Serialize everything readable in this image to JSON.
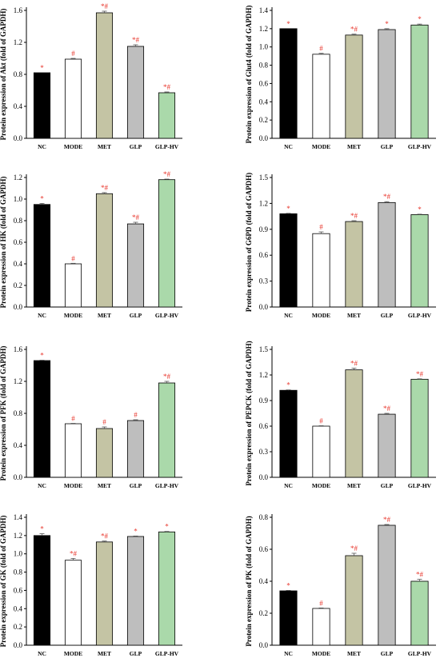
{
  "chart_data": [
    {
      "type": "bar",
      "ylabel": "Protein expression of Akt (fold of GAPDH)",
      "categories": [
        "NC",
        "MODE",
        "MET",
        "GLP",
        "GLP-HV"
      ],
      "values": [
        0.82,
        0.99,
        1.57,
        1.15,
        0.57
      ],
      "errors": [
        0.0,
        0.01,
        0.02,
        0.02,
        0.01
      ],
      "annotations": [
        "*",
        "#",
        "*#",
        "*#",
        "*#"
      ],
      "ylim": [
        0,
        1.6
      ],
      "yticks": [
        "0.0",
        "0.4",
        "0.8",
        "1.2",
        "1.6"
      ]
    },
    {
      "type": "bar",
      "ylabel": "Protein expression of Glut4 (fold of GAPDH)",
      "categories": [
        "NC",
        "MODE",
        "MET",
        "GLP",
        "GLP-HV"
      ],
      "values": [
        1.2,
        0.92,
        1.13,
        1.19,
        1.24
      ],
      "errors": [
        0.0,
        0.01,
        0.01,
        0.01,
        0.01
      ],
      "annotations": [
        "*",
        "#",
        "*#",
        "*",
        "*"
      ],
      "ylim": [
        0,
        1.4
      ],
      "yticks": [
        "0.0",
        "0.2",
        "0.4",
        "0.6",
        "0.8",
        "1.0",
        "1.2",
        "1.4"
      ]
    },
    {
      "type": "bar",
      "ylabel": "Protein expression of HK (fold of GAPDH)",
      "categories": [
        "NC",
        "MODE",
        "MET",
        "GLP",
        "GLP-HV"
      ],
      "values": [
        0.95,
        0.4,
        1.05,
        0.77,
        1.18
      ],
      "errors": [
        0.01,
        0.005,
        0.01,
        0.015,
        0.005
      ],
      "annotations": [
        "*",
        "#",
        "*#",
        "*#",
        "*#"
      ],
      "ylim": [
        0,
        1.2
      ],
      "yticks": [
        "0.0",
        "0.2",
        "0.4",
        "0.6",
        "0.8",
        "1.0",
        "1.2"
      ]
    },
    {
      "type": "bar",
      "ylabel": "Protein expression of G6PD (fold of GAPDH)",
      "categories": [
        "NC",
        "MODE",
        "MET",
        "GLP",
        "GLP-HV"
      ],
      "values": [
        1.08,
        0.85,
        0.99,
        1.21,
        1.07
      ],
      "errors": [
        0.005,
        0.02,
        0.01,
        0.01,
        0.005
      ],
      "annotations": [
        "*",
        "#",
        "*#",
        "*#",
        "*"
      ],
      "ylim": [
        0,
        1.5
      ],
      "yticks": [
        "0.0",
        "0.3",
        "0.6",
        "0.9",
        "1.2",
        "1.5"
      ]
    },
    {
      "type": "bar",
      "ylabel": "Protein expression of PFK (fold of GAPDH)",
      "categories": [
        "NC",
        "MODE",
        "MET",
        "GLP",
        "GLP-HV"
      ],
      "values": [
        1.46,
        0.67,
        0.61,
        0.71,
        1.18
      ],
      "errors": [
        0.005,
        0.005,
        0.02,
        0.01,
        0.02
      ],
      "annotations": [
        "*",
        "#",
        "#",
        "#",
        "*#"
      ],
      "ylim": [
        0,
        1.6
      ],
      "yticks": [
        "0.0",
        "0.4",
        "0.8",
        "1.2",
        "1.6"
      ]
    },
    {
      "type": "bar",
      "ylabel": "Protein expression of PEPCK (fold of GAPDH)",
      "categories": [
        "NC",
        "MODE",
        "MET",
        "GLP",
        "GLP-HV"
      ],
      "values": [
        1.02,
        0.6,
        1.26,
        0.74,
        1.15
      ],
      "errors": [
        0.005,
        0.005,
        0.02,
        0.01,
        0.005
      ],
      "annotations": [
        "*",
        "#",
        "*#",
        "*#",
        "*#"
      ],
      "ylim": [
        0,
        1.5
      ],
      "yticks": [
        "0.0",
        "0.3",
        "0.6",
        "0.9",
        "1.2",
        "1.5"
      ]
    },
    {
      "type": "bar",
      "ylabel": "Protein expression of GK (fold of GAPDH)",
      "categories": [
        "NC",
        "MODE",
        "MET",
        "GLP",
        "GLP-HV"
      ],
      "values": [
        1.2,
        0.93,
        1.13,
        1.19,
        1.24
      ],
      "errors": [
        0.02,
        0.02,
        0.01,
        0.005,
        0.005
      ],
      "annotations": [
        "*",
        "*#",
        "*#",
        "*",
        "*"
      ],
      "ylim": [
        0,
        1.4
      ],
      "yticks": [
        "0.0",
        "0.2",
        "0.4",
        "0.6",
        "0.8",
        "1.0",
        "1.2",
        "1.4"
      ]
    },
    {
      "type": "bar",
      "ylabel": "Protein expression of PK (fold of GAPDH)",
      "categories": [
        "NC",
        "MODE",
        "MET",
        "GLP",
        "GLP-HV"
      ],
      "values": [
        0.34,
        0.23,
        0.56,
        0.75,
        0.4
      ],
      "errors": [
        0.003,
        0.003,
        0.015,
        0.005,
        0.012
      ],
      "annotations": [
        "*",
        "#",
        "*#",
        "*#",
        "*#"
      ],
      "ylim": [
        0,
        0.8
      ],
      "yticks": [
        "0.0",
        "0.2",
        "0.4",
        "0.6",
        "0.8"
      ]
    }
  ],
  "style": {
    "bar_colors": [
      "#000000",
      "#ffffff",
      "#c4c4a4",
      "#bebebe",
      "#aad9aa"
    ],
    "annotation_color": "#e8362c",
    "axis_color": "#000000"
  }
}
